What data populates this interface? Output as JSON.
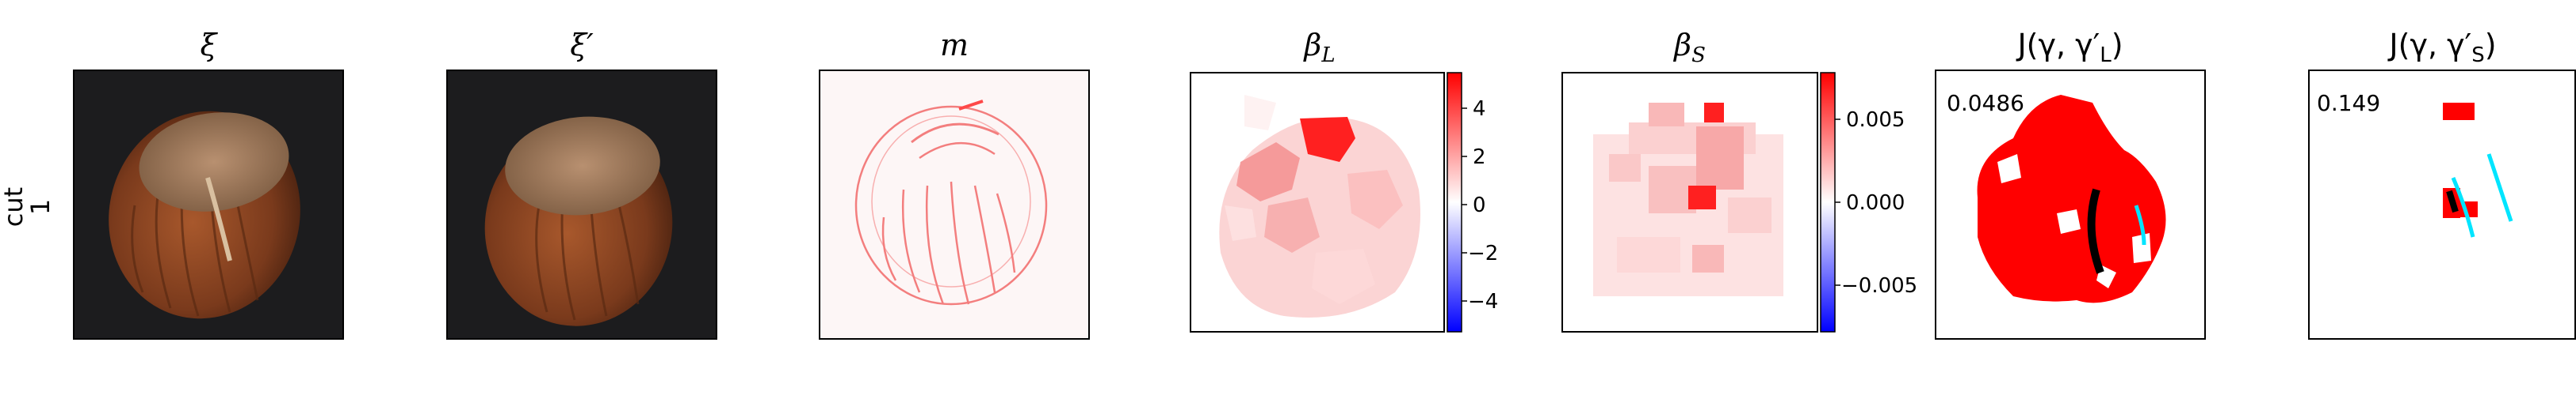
{
  "row_label_line1": "cut",
  "row_label_line2": "1",
  "panels": [
    {
      "id": "xi",
      "title": "ξ"
    },
    {
      "id": "xi_prime",
      "title": "ξ′"
    },
    {
      "id": "m",
      "title": "m"
    },
    {
      "id": "beta_L",
      "title": "β",
      "title_sub": "L"
    },
    {
      "id": "beta_S",
      "title": "β",
      "title_sub": "S"
    },
    {
      "id": "J_L",
      "title": "J(γ, γ′",
      "title_sub": "L",
      "title_end": ")",
      "score": "0.0486"
    },
    {
      "id": "J_S",
      "title": "J(γ, γ′",
      "title_sub": "S",
      "title_end": ")",
      "score": "0.149"
    }
  ],
  "colorbars": [
    {
      "panel": "beta_L",
      "colormap": "bwr",
      "range": [
        -5.5,
        5.5
      ],
      "ticks": [
        "4",
        "2",
        "0",
        "−2",
        "−4"
      ],
      "tick_values": [
        4,
        2,
        0,
        -2,
        -4
      ]
    },
    {
      "panel": "beta_S",
      "colormap": "bwr",
      "range": [
        -0.0078,
        0.0078
      ],
      "ticks": [
        "0.005",
        "0.000",
        "−0.005"
      ],
      "tick_values": [
        0.005,
        0.0,
        -0.005
      ]
    }
  ],
  "colors": {
    "positive": "#ff0000",
    "negative": "#0000ff",
    "ground_truth": "#000000",
    "prediction": "#00e5ff",
    "photo_bg": "#1c1c1e",
    "hazelnut": "#8a4a24"
  }
}
